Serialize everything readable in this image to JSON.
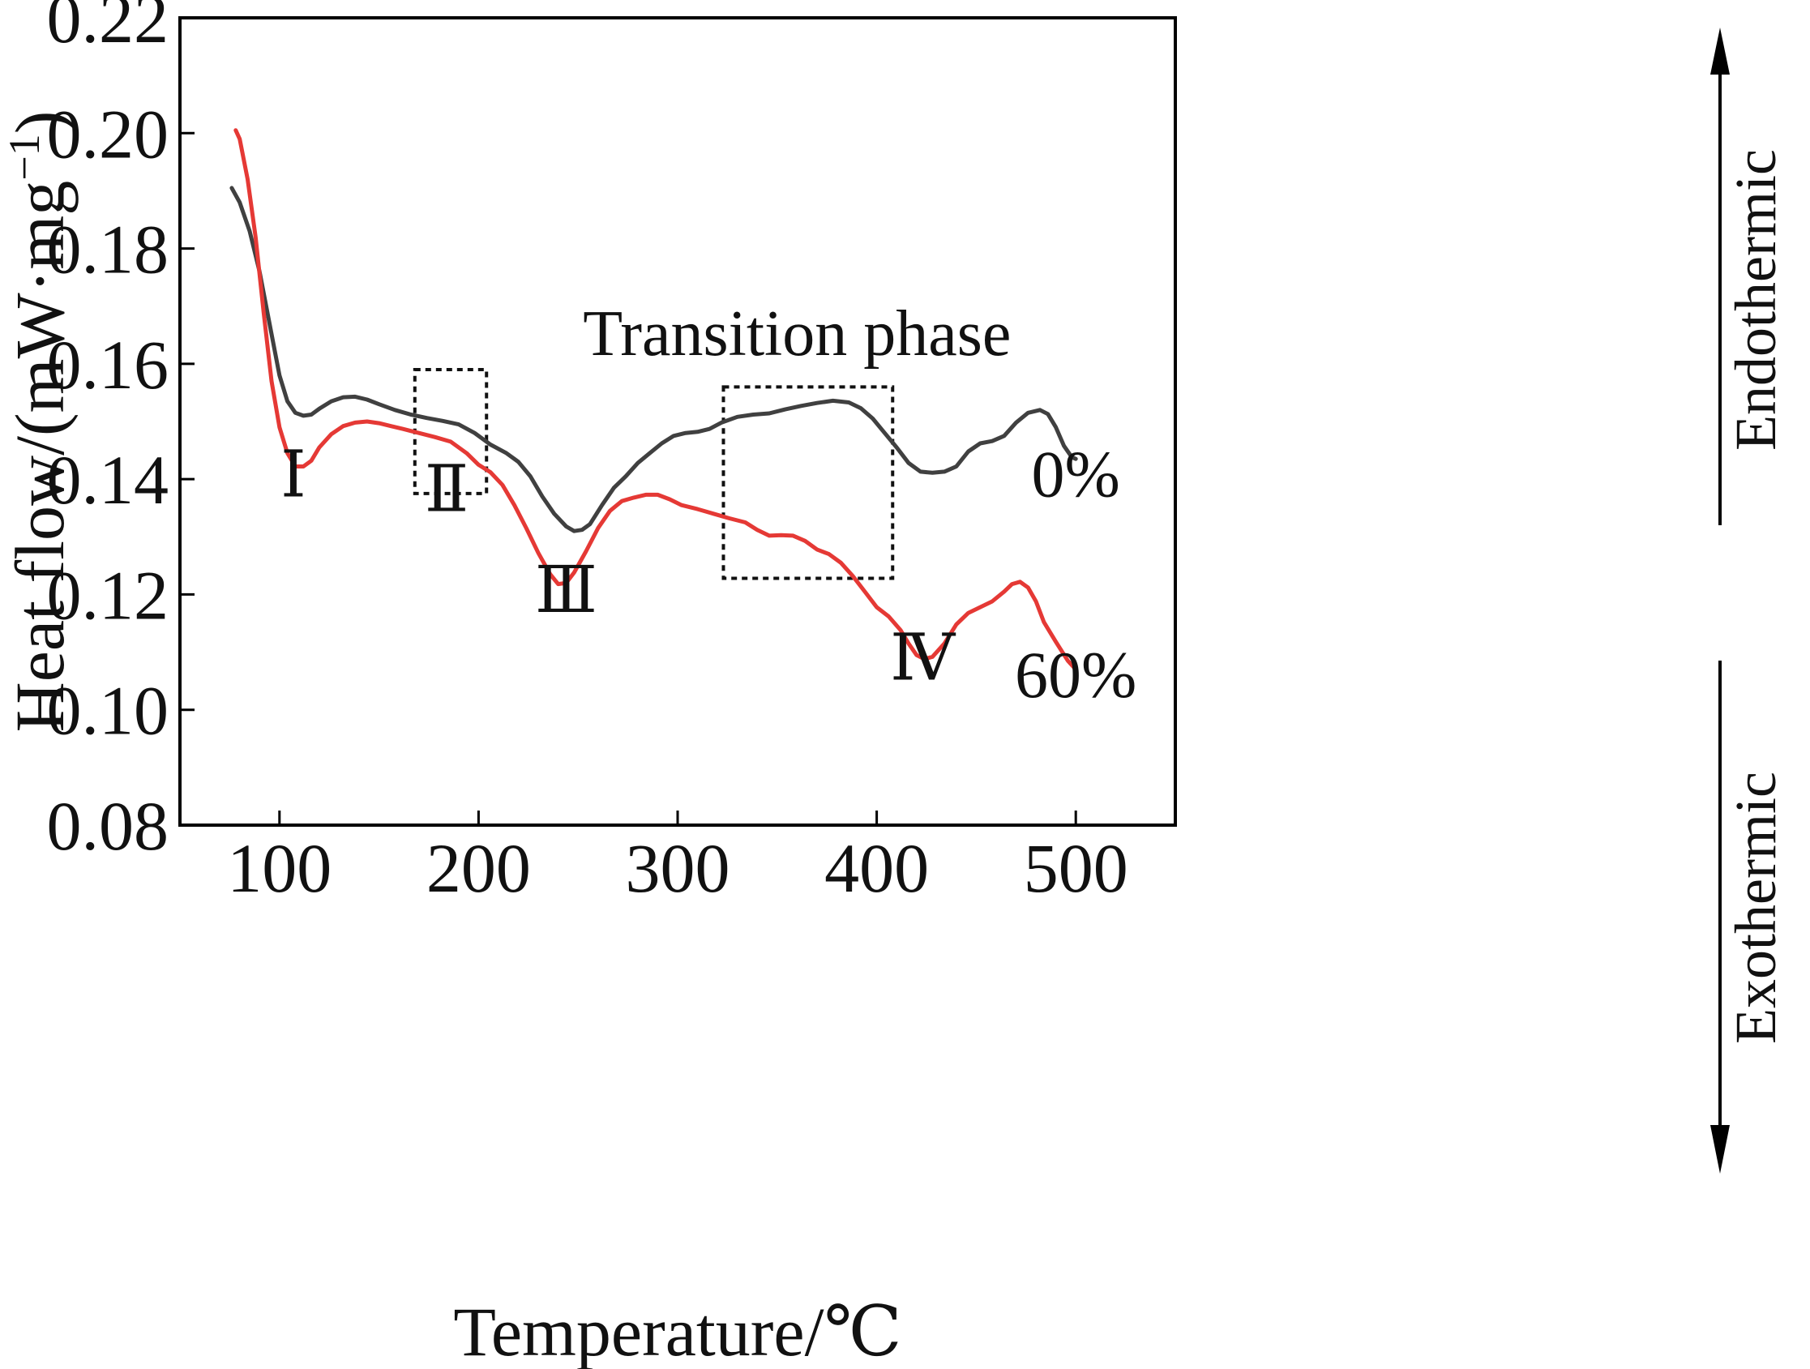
{
  "chart_data": {
    "type": "line",
    "xlabel": "Temperature/℃",
    "ylabel": "Heat flow/(mW·mg",
    "ylabel_sup": "−1",
    "ylabel_close": ")",
    "xlim": [
      50,
      550
    ],
    "ylim": [
      0.08,
      0.22
    ],
    "x_ticks": [
      100,
      200,
      300,
      400,
      500
    ],
    "x_tick_labels": [
      "100",
      "200",
      "300",
      "400",
      "500"
    ],
    "y_ticks": [
      0.08,
      0.1,
      0.12,
      0.14,
      0.16,
      0.18,
      0.2,
      0.22
    ],
    "y_tick_labels": [
      "0.08",
      "0.10",
      "0.12",
      "0.14",
      "0.16",
      "0.18",
      "0.20",
      "0.22"
    ],
    "grid": false,
    "legend": "none",
    "series": [
      {
        "name": "0%",
        "color": "#404040",
        "points": [
          [
            76,
            0.1905
          ],
          [
            80,
            0.188
          ],
          [
            85,
            0.183
          ],
          [
            90,
            0.176
          ],
          [
            95,
            0.167
          ],
          [
            100,
            0.158
          ],
          [
            104,
            0.1535
          ],
          [
            108,
            0.1515
          ],
          [
            112,
            0.151
          ],
          [
            116,
            0.1512
          ],
          [
            120,
            0.1522
          ],
          [
            126,
            0.1535
          ],
          [
            132,
            0.1542
          ],
          [
            138,
            0.1543
          ],
          [
            144,
            0.1538
          ],
          [
            150,
            0.153
          ],
          [
            158,
            0.152
          ],
          [
            166,
            0.1512
          ],
          [
            174,
            0.1506
          ],
          [
            182,
            0.1501
          ],
          [
            190,
            0.1495
          ],
          [
            198,
            0.148
          ],
          [
            206,
            0.146
          ],
          [
            214,
            0.1445
          ],
          [
            220,
            0.143
          ],
          [
            226,
            0.1405
          ],
          [
            232,
            0.137
          ],
          [
            238,
            0.134
          ],
          [
            244,
            0.1318
          ],
          [
            248,
            0.131
          ],
          [
            252,
            0.1312
          ],
          [
            256,
            0.1322
          ],
          [
            262,
            0.1355
          ],
          [
            268,
            0.1385
          ],
          [
            274,
            0.1405
          ],
          [
            280,
            0.1428
          ],
          [
            286,
            0.1445
          ],
          [
            292,
            0.1462
          ],
          [
            298,
            0.1475
          ],
          [
            304,
            0.148
          ],
          [
            310,
            0.1482
          ],
          [
            316,
            0.1487
          ],
          [
            322,
            0.1498
          ],
          [
            330,
            0.1508
          ],
          [
            338,
            0.1512
          ],
          [
            346,
            0.1514
          ],
          [
            354,
            0.1521
          ],
          [
            362,
            0.1527
          ],
          [
            370,
            0.1532
          ],
          [
            378,
            0.1536
          ],
          [
            386,
            0.1533
          ],
          [
            392,
            0.1523
          ],
          [
            398,
            0.1505
          ],
          [
            404,
            0.148
          ],
          [
            410,
            0.1455
          ],
          [
            416,
            0.1428
          ],
          [
            422,
            0.1413
          ],
          [
            428,
            0.1411
          ],
          [
            434,
            0.1413
          ],
          [
            440,
            0.1422
          ],
          [
            446,
            0.1448
          ],
          [
            452,
            0.1462
          ],
          [
            458,
            0.1466
          ],
          [
            464,
            0.1475
          ],
          [
            470,
            0.1498
          ],
          [
            476,
            0.1515
          ],
          [
            482,
            0.152
          ],
          [
            486,
            0.1513
          ],
          [
            490,
            0.149
          ],
          [
            494,
            0.1458
          ],
          [
            498,
            0.1438
          ],
          [
            500,
            0.1435
          ]
        ]
      },
      {
        "name": "60%",
        "color": "#e53935",
        "points": [
          [
            78,
            0.2005
          ],
          [
            80,
            0.199
          ],
          [
            84,
            0.192
          ],
          [
            88,
            0.182
          ],
          [
            92,
            0.169
          ],
          [
            96,
            0.157
          ],
          [
            100,
            0.149
          ],
          [
            104,
            0.1445
          ],
          [
            108,
            0.1422
          ],
          [
            112,
            0.1422
          ],
          [
            116,
            0.1432
          ],
          [
            120,
            0.1455
          ],
          [
            126,
            0.1478
          ],
          [
            132,
            0.1492
          ],
          [
            138,
            0.1498
          ],
          [
            144,
            0.15
          ],
          [
            150,
            0.1497
          ],
          [
            156,
            0.1492
          ],
          [
            162,
            0.1487
          ],
          [
            170,
            0.148
          ],
          [
            178,
            0.1473
          ],
          [
            186,
            0.1465
          ],
          [
            194,
            0.1445
          ],
          [
            200,
            0.1425
          ],
          [
            206,
            0.1412
          ],
          [
            212,
            0.139
          ],
          [
            218,
            0.1355
          ],
          [
            224,
            0.1315
          ],
          [
            230,
            0.1272
          ],
          [
            236,
            0.1235
          ],
          [
            240,
            0.1218
          ],
          [
            244,
            0.122
          ],
          [
            248,
            0.1238
          ],
          [
            254,
            0.1275
          ],
          [
            260,
            0.1315
          ],
          [
            266,
            0.1345
          ],
          [
            272,
            0.1362
          ],
          [
            278,
            0.1368
          ],
          [
            284,
            0.1373
          ],
          [
            290,
            0.1373
          ],
          [
            296,
            0.1365
          ],
          [
            302,
            0.1355
          ],
          [
            310,
            0.1348
          ],
          [
            318,
            0.134
          ],
          [
            326,
            0.1332
          ],
          [
            334,
            0.1325
          ],
          [
            340,
            0.1312
          ],
          [
            346,
            0.1302
          ],
          [
            352,
            0.1303
          ],
          [
            358,
            0.1302
          ],
          [
            364,
            0.1293
          ],
          [
            370,
            0.1278
          ],
          [
            376,
            0.127
          ],
          [
            382,
            0.1255
          ],
          [
            388,
            0.1232
          ],
          [
            394,
            0.1205
          ],
          [
            400,
            0.1178
          ],
          [
            406,
            0.1162
          ],
          [
            412,
            0.1138
          ],
          [
            416,
            0.1115
          ],
          [
            420,
            0.1095
          ],
          [
            424,
            0.1088
          ],
          [
            428,
            0.1092
          ],
          [
            434,
            0.1115
          ],
          [
            440,
            0.1148
          ],
          [
            446,
            0.1168
          ],
          [
            452,
            0.1178
          ],
          [
            458,
            0.1188
          ],
          [
            464,
            0.1205
          ],
          [
            468,
            0.1218
          ],
          [
            472,
            0.1222
          ],
          [
            476,
            0.1212
          ],
          [
            480,
            0.1188
          ],
          [
            484,
            0.1152
          ],
          [
            490,
            0.1118
          ],
          [
            496,
            0.1085
          ],
          [
            500,
            0.107
          ]
        ]
      }
    ],
    "series_labels": [
      {
        "text": "0%",
        "x": 500,
        "y": 0.137
      },
      {
        "text": "60%",
        "x": 500,
        "y": 0.1022
      }
    ],
    "annotations": [
      {
        "text": "Ⅰ",
        "x": 107,
        "y": 0.137
      },
      {
        "text": "Ⅱ",
        "x": 184,
        "y": 0.1345
      },
      {
        "text": "Ⅲ",
        "x": 244,
        "y": 0.117
      },
      {
        "text": "Ⅳ",
        "x": 423,
        "y": 0.1052
      }
    ],
    "boxes": [
      {
        "x0": 168,
        "x1": 204,
        "y0": 0.1375,
        "y1": 0.159
      },
      {
        "x0": 323,
        "x1": 408,
        "y0": 0.1228,
        "y1": 0.156
      }
    ],
    "box_label": {
      "text": "Transition phase",
      "x": 360,
      "y": 0.1615
    },
    "side_labels": {
      "top": "Endothermic",
      "bottom": "Exothermic"
    }
  }
}
